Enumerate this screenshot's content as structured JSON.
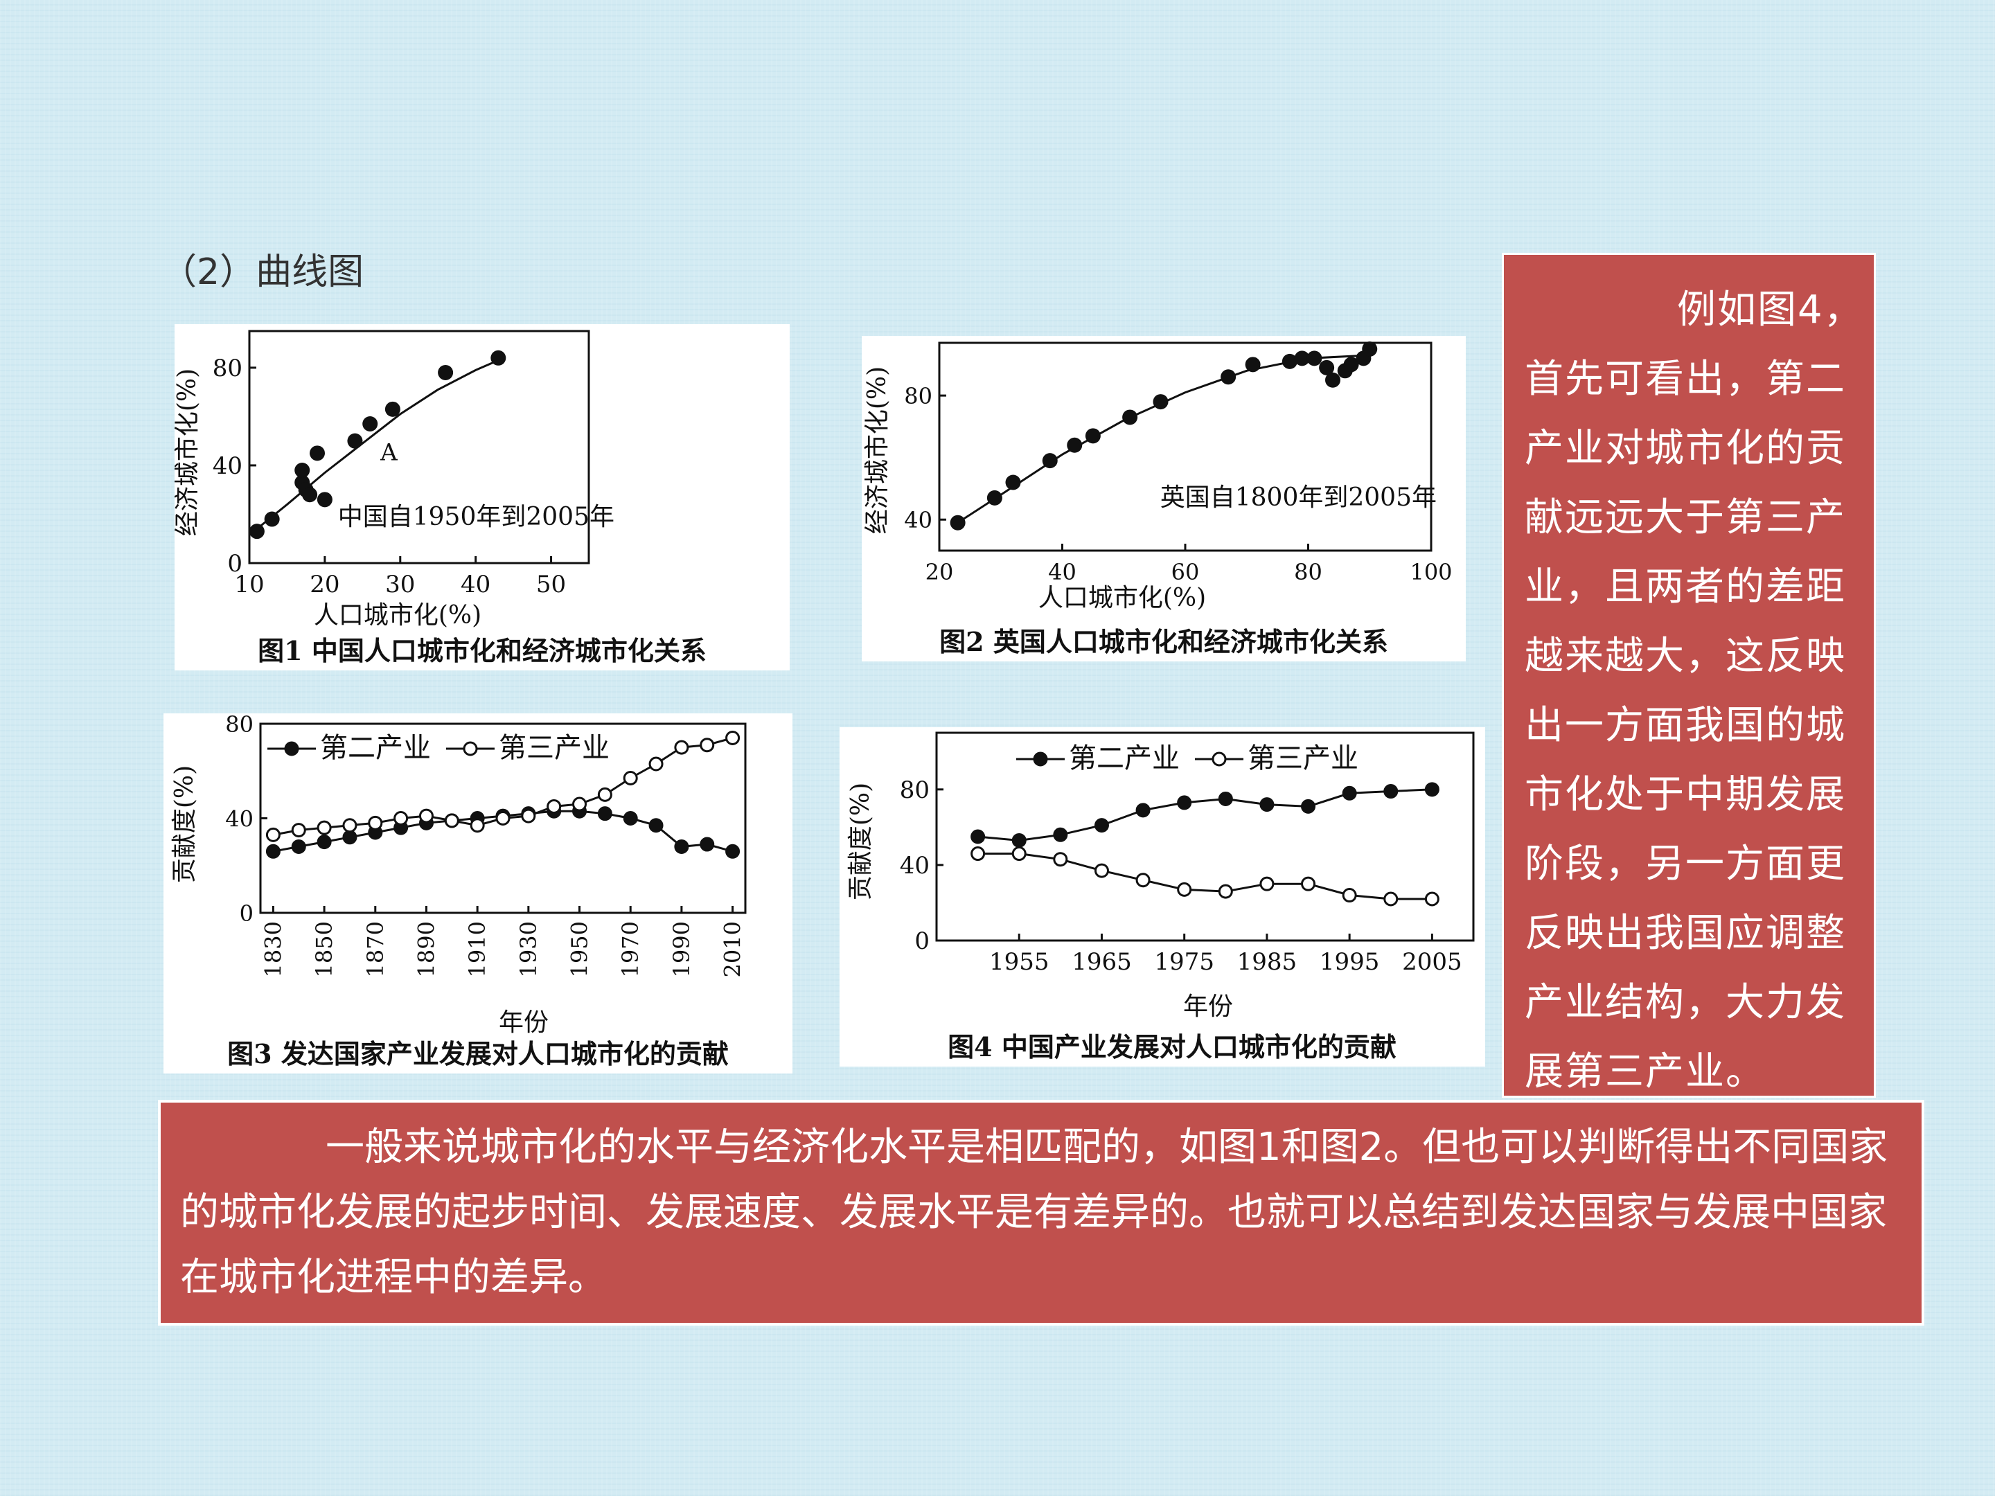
{
  "heading": "（2）曲线图",
  "side_text": "例如图4，首先可看出，第二产业对城市化的贡献远远大于第三产业，且两者的差距越来越大，这反映出一方面我国的城市化处于中期发展阶段，另一方面更反映出我国应调整产业结构，大力发展第三产业。",
  "bottom_text": "一般来说城市化的水平与经济化水平是相匹配的，如图1和图2。但也可以判断得出不同国家的城市化发展的起步时间、发展速度、发展水平是有差异的。也就可以总结到发达国家与发展中国家在城市化进程中的差异。",
  "colors": {
    "box": "#c0504d",
    "background": "#d3ebf3",
    "ink": "#111111"
  },
  "chart_data": [
    {
      "type": "scatter",
      "caption": "图1  中国人口城市化和经济城市化关系",
      "annotation": "中国自1950年到2005年",
      "point_label": "A",
      "xlabel": "人口城市化(%)",
      "ylabel": "经济城市化(%)",
      "xlim": [
        10,
        55
      ],
      "ylim": [
        0,
        95
      ],
      "xticks": [
        10,
        20,
        30,
        40,
        50
      ],
      "yticks": [
        0,
        40,
        80
      ],
      "points": [
        [
          11,
          13
        ],
        [
          13,
          18
        ],
        [
          17,
          33
        ],
        [
          17,
          38
        ],
        [
          17.5,
          30
        ],
        [
          18,
          28
        ],
        [
          19,
          45
        ],
        [
          20,
          26
        ],
        [
          24,
          50
        ],
        [
          26,
          57
        ],
        [
          29,
          63
        ],
        [
          36,
          78
        ],
        [
          43,
          84
        ]
      ],
      "trend": [
        [
          11,
          14
        ],
        [
          15,
          24
        ],
        [
          20,
          37
        ],
        [
          25,
          49
        ],
        [
          30,
          61
        ],
        [
          35,
          71
        ],
        [
          40,
          79
        ],
        [
          43,
          83
        ]
      ]
    },
    {
      "type": "scatter",
      "caption": "图2  英国人口城市化和经济城市化关系",
      "annotation": "英国自1800年到2005年",
      "xlabel": "人口城市化(%)",
      "ylabel": "经济城市化(%)",
      "xlim": [
        20,
        100
      ],
      "ylim": [
        30,
        97
      ],
      "xticks": [
        20,
        40,
        60,
        80,
        100
      ],
      "yticks": [
        40,
        80
      ],
      "points": [
        [
          23,
          39
        ],
        [
          29,
          47
        ],
        [
          32,
          52
        ],
        [
          38,
          59
        ],
        [
          42,
          64
        ],
        [
          45,
          67
        ],
        [
          51,
          73
        ],
        [
          56,
          78
        ],
        [
          67,
          86
        ],
        [
          71,
          90
        ],
        [
          77,
          91
        ],
        [
          79,
          92
        ],
        [
          81,
          92
        ],
        [
          83,
          89
        ],
        [
          84,
          85
        ],
        [
          86,
          88
        ],
        [
          87,
          90
        ],
        [
          89,
          92
        ],
        [
          90,
          95
        ]
      ],
      "trend": [
        [
          23,
          39
        ],
        [
          30,
          48
        ],
        [
          40,
          61
        ],
        [
          50,
          72
        ],
        [
          60,
          81
        ],
        [
          70,
          88
        ],
        [
          80,
          92
        ],
        [
          90,
          93
        ]
      ]
    },
    {
      "type": "line",
      "caption": "图3  发达国家产业发展对人口城市化的贡献",
      "xlabel": "年份",
      "ylabel": "贡献度(%)",
      "xlim": [
        1825,
        2015
      ],
      "ylim": [
        0,
        80
      ],
      "xticks": [
        1830,
        1850,
        1870,
        1890,
        1910,
        1930,
        1950,
        1970,
        1990,
        2010
      ],
      "yticks": [
        0,
        40,
        80
      ],
      "series": [
        {
          "name": "第二产业",
          "marker": "filled",
          "x": [
            1830,
            1840,
            1850,
            1860,
            1870,
            1880,
            1890,
            1900,
            1910,
            1920,
            1930,
            1940,
            1950,
            1960,
            1970,
            1980,
            1990,
            2000,
            2010
          ],
          "y": [
            26,
            28,
            30,
            32,
            34,
            36,
            38,
            39,
            40,
            41,
            42,
            43,
            43,
            42,
            40,
            37,
            28,
            29,
            26
          ]
        },
        {
          "name": "第三产业",
          "marker": "open",
          "x": [
            1830,
            1840,
            1850,
            1860,
            1870,
            1880,
            1890,
            1900,
            1910,
            1920,
            1930,
            1940,
            1950,
            1960,
            1970,
            1980,
            1990,
            2000,
            2010
          ],
          "y": [
            33,
            35,
            36,
            37,
            38,
            40,
            41,
            39,
            37,
            40,
            41,
            45,
            46,
            50,
            57,
            63,
            70,
            71,
            74
          ]
        }
      ]
    },
    {
      "type": "line",
      "caption": "图4  中国产业发展对人口城市化的贡献",
      "xlabel": "年份",
      "ylabel": "贡献度(%)",
      "xlim": [
        1945,
        2010
      ],
      "ylim": [
        0,
        110
      ],
      "xticks": [
        1955,
        1965,
        1975,
        1985,
        1995,
        2005
      ],
      "yticks": [
        0,
        40,
        80
      ],
      "series": [
        {
          "name": "第二产业",
          "marker": "filled",
          "x": [
            1950,
            1955,
            1960,
            1965,
            1970,
            1975,
            1980,
            1985,
            1990,
            1995,
            2000,
            2005
          ],
          "y": [
            55,
            53,
            56,
            61,
            69,
            73,
            75,
            72,
            71,
            78,
            79,
            80
          ]
        },
        {
          "name": "第三产业",
          "marker": "open",
          "x": [
            1950,
            1955,
            1960,
            1965,
            1970,
            1975,
            1980,
            1985,
            1990,
            1995,
            2000,
            2005
          ],
          "y": [
            46,
            46,
            43,
            37,
            32,
            27,
            26,
            30,
            30,
            24,
            22,
            22
          ]
        }
      ]
    }
  ]
}
